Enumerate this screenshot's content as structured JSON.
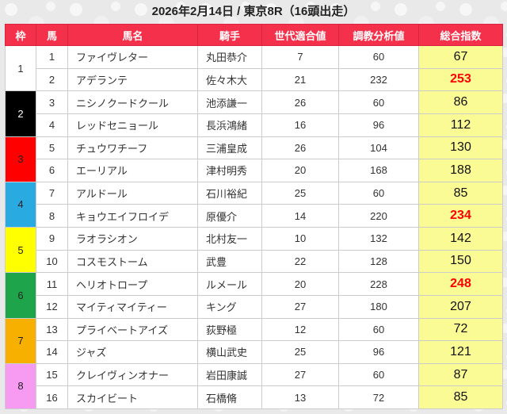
{
  "title": "2026年2月14日 / 東京8R（16頭出走）",
  "colors": {
    "header_bg": "#f4304a",
    "header_text": "#ffffff",
    "total_column_bg": "#fbfb96",
    "highlight_value": "#ff0000",
    "grid_line": "#cccccc"
  },
  "table": {
    "headers": [
      "枠",
      "馬",
      "馬名",
      "騎手",
      "世代適合値",
      "調教分析値",
      "総合指数"
    ],
    "frames": [
      {
        "no": "1",
        "color": "#ffffff",
        "text_color": "#333333"
      },
      {
        "no": "2",
        "color": "#000000",
        "text_color": "#ffffff"
      },
      {
        "no": "3",
        "color": "#ff0000",
        "text_color": "#222222"
      },
      {
        "no": "4",
        "color": "#29abe2",
        "text_color": "#222222"
      },
      {
        "no": "5",
        "color": "#ffff00",
        "text_color": "#222222"
      },
      {
        "no": "6",
        "color": "#1ea54c",
        "text_color": "#222222"
      },
      {
        "no": "7",
        "color": "#f7b000",
        "text_color": "#222222"
      },
      {
        "no": "8",
        "color": "#f79af2",
        "text_color": "#222222"
      }
    ],
    "rows": [
      {
        "num": "1",
        "name": "ファイヴレター",
        "jockey": "丸田恭介",
        "gen": "7",
        "train": "60",
        "total": "67",
        "highlight": false
      },
      {
        "num": "2",
        "name": "アデランテ",
        "jockey": "佐々木大",
        "gen": "21",
        "train": "232",
        "total": "253",
        "highlight": true
      },
      {
        "num": "3",
        "name": "ニシノクードクール",
        "jockey": "池添謙一",
        "gen": "26",
        "train": "60",
        "total": "86",
        "highlight": false
      },
      {
        "num": "4",
        "name": "レッドセニョール",
        "jockey": "長浜鴻緒",
        "gen": "16",
        "train": "96",
        "total": "112",
        "highlight": false
      },
      {
        "num": "5",
        "name": "チュウワチーフ",
        "jockey": "三浦皇成",
        "gen": "26",
        "train": "104",
        "total": "130",
        "highlight": false
      },
      {
        "num": "6",
        "name": "エーリアル",
        "jockey": "津村明秀",
        "gen": "20",
        "train": "168",
        "total": "188",
        "highlight": false
      },
      {
        "num": "7",
        "name": "アルドール",
        "jockey": "石川裕紀",
        "gen": "25",
        "train": "60",
        "total": "85",
        "highlight": false
      },
      {
        "num": "8",
        "name": "キョウエイフロイデ",
        "jockey": "原優介",
        "gen": "14",
        "train": "220",
        "total": "234",
        "highlight": true
      },
      {
        "num": "9",
        "name": "ラオラシオン",
        "jockey": "北村友一",
        "gen": "10",
        "train": "132",
        "total": "142",
        "highlight": false
      },
      {
        "num": "10",
        "name": "コスモストーム",
        "jockey": "武豊",
        "gen": "22",
        "train": "128",
        "total": "150",
        "highlight": false
      },
      {
        "num": "11",
        "name": "ヘリオトロープ",
        "jockey": "ルメール",
        "gen": "20",
        "train": "228",
        "total": "248",
        "highlight": true
      },
      {
        "num": "12",
        "name": "マイティマイティー",
        "jockey": "キング",
        "gen": "27",
        "train": "180",
        "total": "207",
        "highlight": false
      },
      {
        "num": "13",
        "name": "プライベートアイズ",
        "jockey": "荻野極",
        "gen": "12",
        "train": "60",
        "total": "72",
        "highlight": false
      },
      {
        "num": "14",
        "name": "ジャズ",
        "jockey": "横山武史",
        "gen": "25",
        "train": "96",
        "total": "121",
        "highlight": false
      },
      {
        "num": "15",
        "name": "クレイヴィンオナー",
        "jockey": "岩田康誠",
        "gen": "27",
        "train": "60",
        "total": "87",
        "highlight": false
      },
      {
        "num": "16",
        "name": "スカイビート",
        "jockey": "石橋脩",
        "gen": "13",
        "train": "72",
        "total": "85",
        "highlight": false
      }
    ]
  }
}
